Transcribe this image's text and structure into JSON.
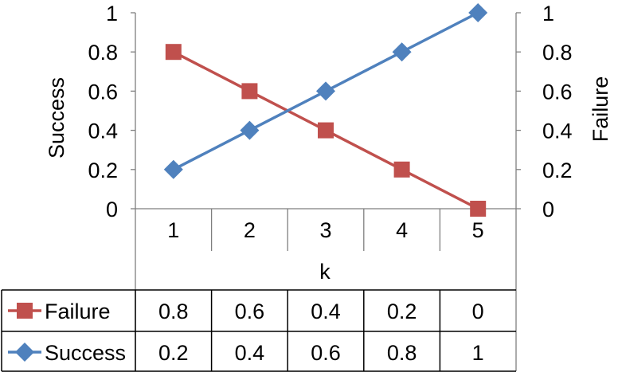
{
  "chart_data": {
    "type": "line",
    "categories": [
      "1",
      "2",
      "3",
      "4",
      "5"
    ],
    "xlabel": "k",
    "ylabel_left": "Success",
    "ylabel_right": "Failure",
    "ylim": [
      0,
      1
    ],
    "y_ticks": [
      "0",
      "0.2",
      "0.4",
      "0.6",
      "0.8",
      "1"
    ],
    "grid": false,
    "legend": "data-table-below",
    "series": [
      {
        "name": "Failure",
        "values": [
          0.8,
          0.6,
          0.4,
          0.2,
          0
        ],
        "labels": [
          "0.8",
          "0.6",
          "0.4",
          "0.2",
          "0"
        ],
        "color": "#C0504D",
        "marker": "square",
        "axis": "right"
      },
      {
        "name": "Success",
        "values": [
          0.2,
          0.4,
          0.6,
          0.8,
          1
        ],
        "labels": [
          "0.2",
          "0.4",
          "0.6",
          "0.8",
          "1"
        ],
        "color": "#4F81BD",
        "marker": "diamond",
        "axis": "left"
      }
    ]
  }
}
